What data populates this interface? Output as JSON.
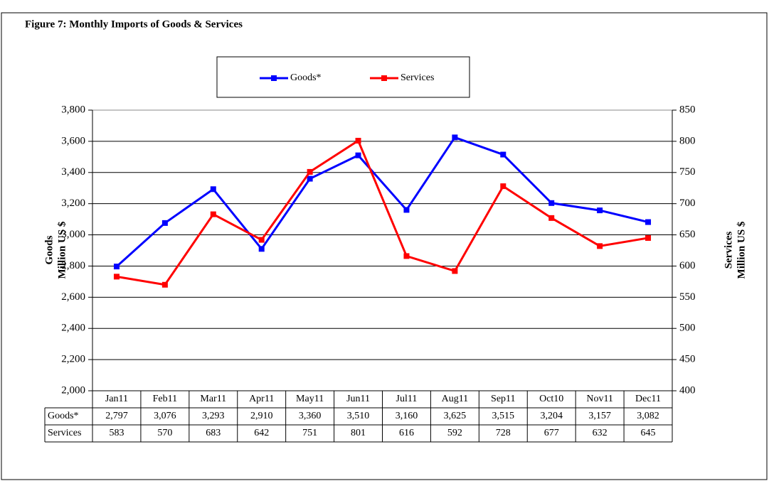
{
  "chart_data": {
    "type": "line",
    "title": "Figure 7: Monthly Imports of Goods & Services",
    "ylabel": [
      "Goods",
      "Million  US $"
    ],
    "y2label": [
      "Services",
      "Million  US $"
    ],
    "categories": [
      "Jan11",
      "Feb11",
      "Mar11",
      "Apr11",
      "May11",
      "Jun11",
      "Jul11",
      "Aug11",
      "Sep11",
      "Oct10",
      "Nov11",
      "Dec11"
    ],
    "series": [
      {
        "name": "Goods*",
        "color": "#0000ff",
        "axis": "y",
        "values": [
          2797,
          3076,
          3293,
          2910,
          3360,
          3510,
          3160,
          3625,
          3515,
          3204,
          3157,
          3082
        ],
        "value_labels": [
          "2,797",
          "3,076",
          "3,293",
          "2,910",
          "3,360",
          "3,510",
          "3,160",
          "3,625",
          "3,515",
          "3,204",
          "3,157",
          "3,082"
        ]
      },
      {
        "name": "Services",
        "color": "#ff0000",
        "axis": "y2",
        "values": [
          583,
          570,
          683,
          642,
          751,
          801,
          616,
          592,
          728,
          677,
          632,
          645
        ]
      }
    ],
    "ylim": [
      2000,
      3800
    ],
    "yticks": [
      {
        "value": 2000,
        "label": "2,000"
      },
      {
        "value": 2200,
        "label": "2,200"
      },
      {
        "value": 2400,
        "label": "2,400"
      },
      {
        "value": 2600,
        "label": "2,600"
      },
      {
        "value": 2800,
        "label": "2,800"
      },
      {
        "value": 3000,
        "label": "3,000"
      },
      {
        "value": 3200,
        "label": "3,200"
      },
      {
        "value": 3400,
        "label": "3,400"
      },
      {
        "value": 3600,
        "label": "3,600"
      },
      {
        "value": 3800,
        "label": "3,800"
      }
    ],
    "y2lim": [
      400,
      850
    ],
    "y2ticks": [
      400,
      450,
      500,
      550,
      600,
      650,
      700,
      750,
      800,
      850
    ],
    "grid": true,
    "legend": "top"
  }
}
